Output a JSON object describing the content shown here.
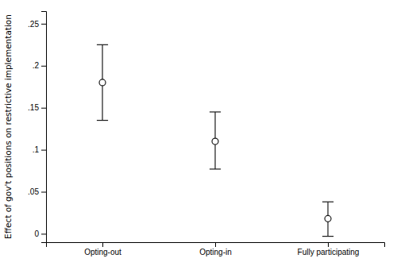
{
  "chart_data": {
    "type": "scatter",
    "categories": [
      "Opting-out",
      "Opting-in",
      "Fully participating"
    ],
    "values": [
      0.18,
      0.11,
      0.018
    ],
    "upper_ci": [
      0.225,
      0.145,
      0.038
    ],
    "lower_ci": [
      0.135,
      0.077,
      -0.003
    ],
    "ylabel": "Effect of gov't positions on restrictive implementation",
    "ylim": [
      -0.01,
      0.265
    ],
    "yticks": [
      0,
      {
        "value": 0.05,
        "label": ".05"
      },
      {
        "value": 0.1,
        "label": ".1"
      },
      {
        "value": 0.15,
        "label": ".15"
      },
      {
        "value": 0.2,
        "label": ".2"
      },
      {
        "value": 0.25,
        "label": ".25"
      }
    ],
    "color": "#1a1a1a",
    "marker": "circle",
    "grid": false
  }
}
